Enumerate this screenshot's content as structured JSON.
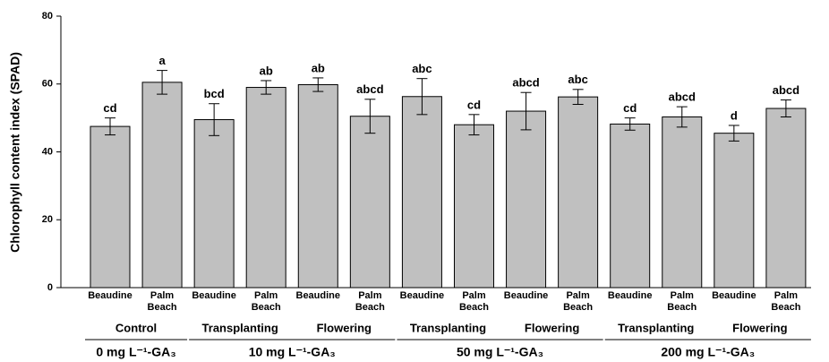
{
  "chart_data": {
    "type": "bar",
    "y_label": "Chlorophyll content index (SPAD)",
    "categories": [
      "Beaudine",
      "Palm Beach",
      "Beaudine",
      "Palm Beach",
      "Beaudine",
      "Palm Beach",
      "Beaudine",
      "Palm Beach",
      "Beaudine",
      "Palm Beach",
      "Beaudine",
      "Palm Beach",
      "Beaudine",
      "Palm Beach"
    ],
    "values": [
      47.5,
      60.5,
      49.5,
      59,
      59.8,
      50.5,
      56.3,
      48,
      52,
      56.2,
      48.2,
      50.3,
      45.5,
      52.8
    ],
    "errors": [
      2.5,
      3.5,
      4.7,
      2,
      2,
      5,
      5.3,
      3,
      5.5,
      2.2,
      1.8,
      3,
      2.3,
      2.5
    ],
    "letters": [
      "cd",
      "a",
      "bcd",
      "ab",
      "ab",
      "abcd",
      "abc",
      "cd",
      "abcd",
      "abc",
      "cd",
      "abcd",
      "d",
      "abcd"
    ],
    "groups": [
      {
        "label": "0 mg L⁻¹-GA₃",
        "subgroups": [
          "Control"
        ]
      },
      {
        "label": "10 mg L⁻¹-GA₃",
        "subgroups": [
          "Transplanting",
          "Flowering"
        ]
      },
      {
        "label": "50 mg L⁻¹-GA₃",
        "subgroups": [
          "Transplanting",
          "Flowering"
        ]
      },
      {
        "label": "200 mg L⁻¹-GA₃",
        "subgroups": [
          "Transplanting",
          "Flowering"
        ]
      }
    ],
    "color": "#c0c0c0",
    "ylim": [
      0,
      80
    ],
    "yticks": [
      0,
      20,
      40,
      60,
      80
    ]
  }
}
